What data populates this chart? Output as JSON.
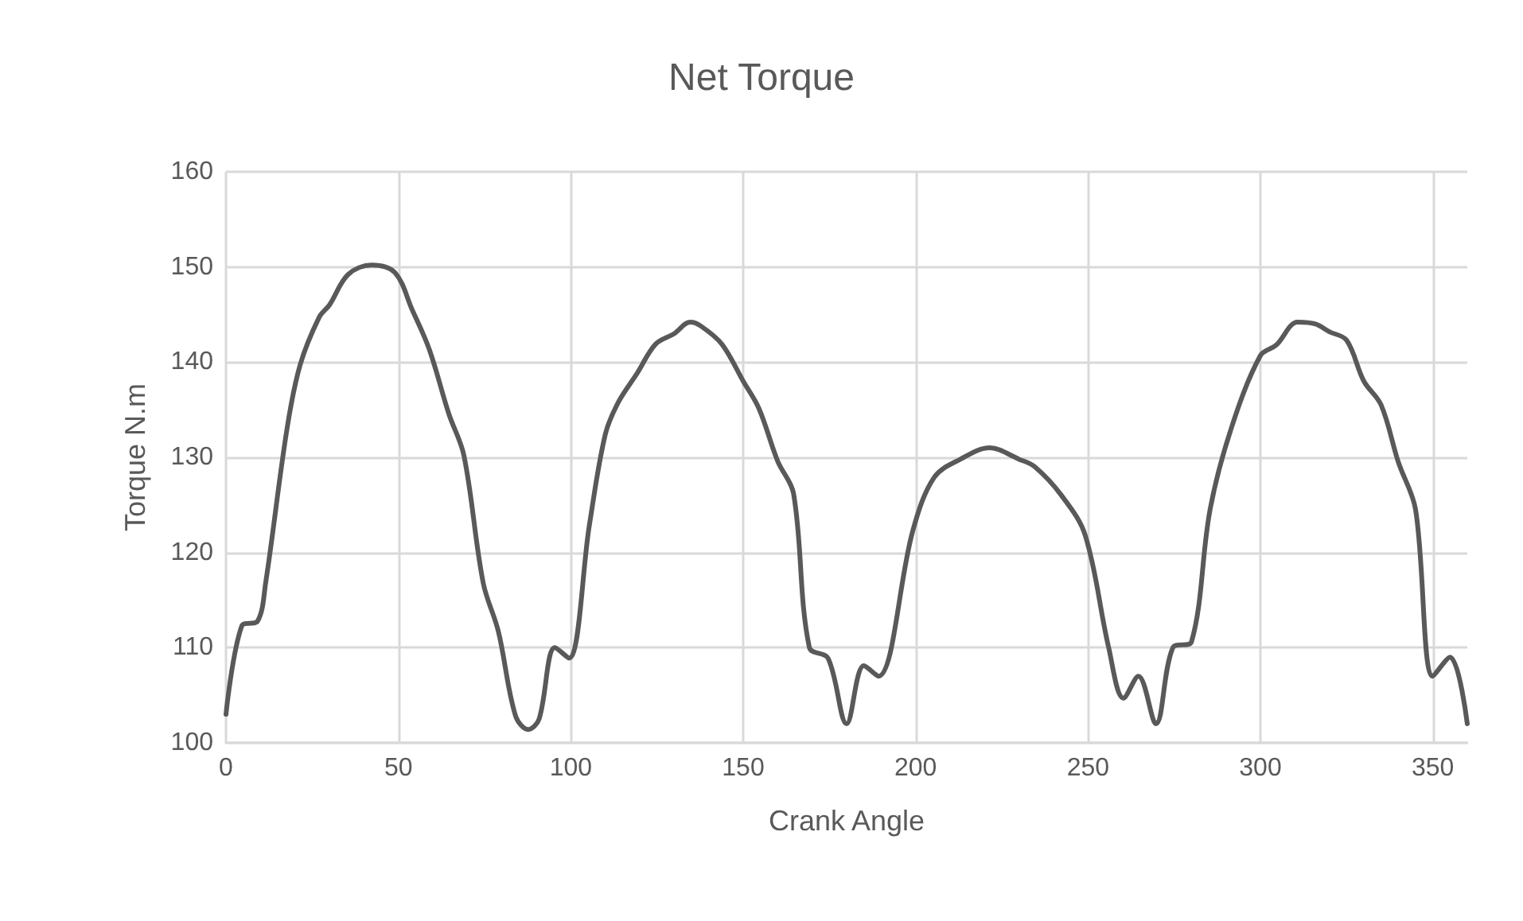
{
  "chart_data": {
    "type": "line",
    "title": "Net Torque",
    "xlabel": "Crank Angle",
    "ylabel": "Torque N.m",
    "xlim": [
      0,
      360
    ],
    "xticks": [
      0,
      50,
      100,
      150,
      200,
      250,
      300,
      350
    ],
    "ylim": [
      100,
      160
    ],
    "yticks": [
      100,
      110,
      120,
      130,
      140,
      150,
      160
    ],
    "grid": true,
    "marker": "none",
    "line_style": "solid",
    "series": [
      {
        "color": "#595959",
        "x": [
          0,
          4.6,
          9.2,
          11.5,
          17.7,
          21.5,
          27,
          30,
          35.4,
          42.3,
          49,
          54,
          59,
          64.6,
          69,
          74.6,
          79,
          84,
          87.7,
          90.8,
          95.4,
          99.5,
          105.4,
          110,
          113.8,
          119.2,
          124.6,
          130,
          134.6,
          137.7,
          143.8,
          150,
          154.6,
          160,
          164.6,
          169.2,
          174.6,
          180,
          185,
          189.2,
          199.2,
          205.4,
          213,
          221.5,
          230,
          234.6,
          242.3,
          249.2,
          256,
          260.3,
          264.6,
          269.7,
          274.6,
          280,
          285.4,
          291.5,
          300,
          304.6,
          310.8,
          316,
          320,
          325,
          330,
          335,
          340,
          345,
          350,
          355,
          360
        ],
        "values": [
          103,
          112.3,
          112.8,
          116.8,
          133,
          139.7,
          144.7,
          146,
          149.2,
          150.2,
          149.4,
          145.5,
          141.3,
          134.6,
          130.2,
          116.8,
          111.7,
          102.8,
          101.4,
          102.5,
          110,
          108.9,
          122.9,
          132.4,
          135.8,
          138.8,
          141.9,
          143,
          144.2,
          143.8,
          141.9,
          138,
          135.1,
          129.6,
          126.2,
          110,
          108.9,
          102,
          108.1,
          107,
          122.3,
          127.9,
          129.8,
          131,
          129.8,
          129,
          126,
          121.8,
          110,
          104.7,
          107,
          102,
          110,
          110.6,
          124.5,
          133,
          140.7,
          141.8,
          144.2,
          144,
          143.2,
          142.3,
          138,
          135.5,
          129.5,
          124.5,
          107,
          109,
          102
        ]
      }
    ]
  }
}
